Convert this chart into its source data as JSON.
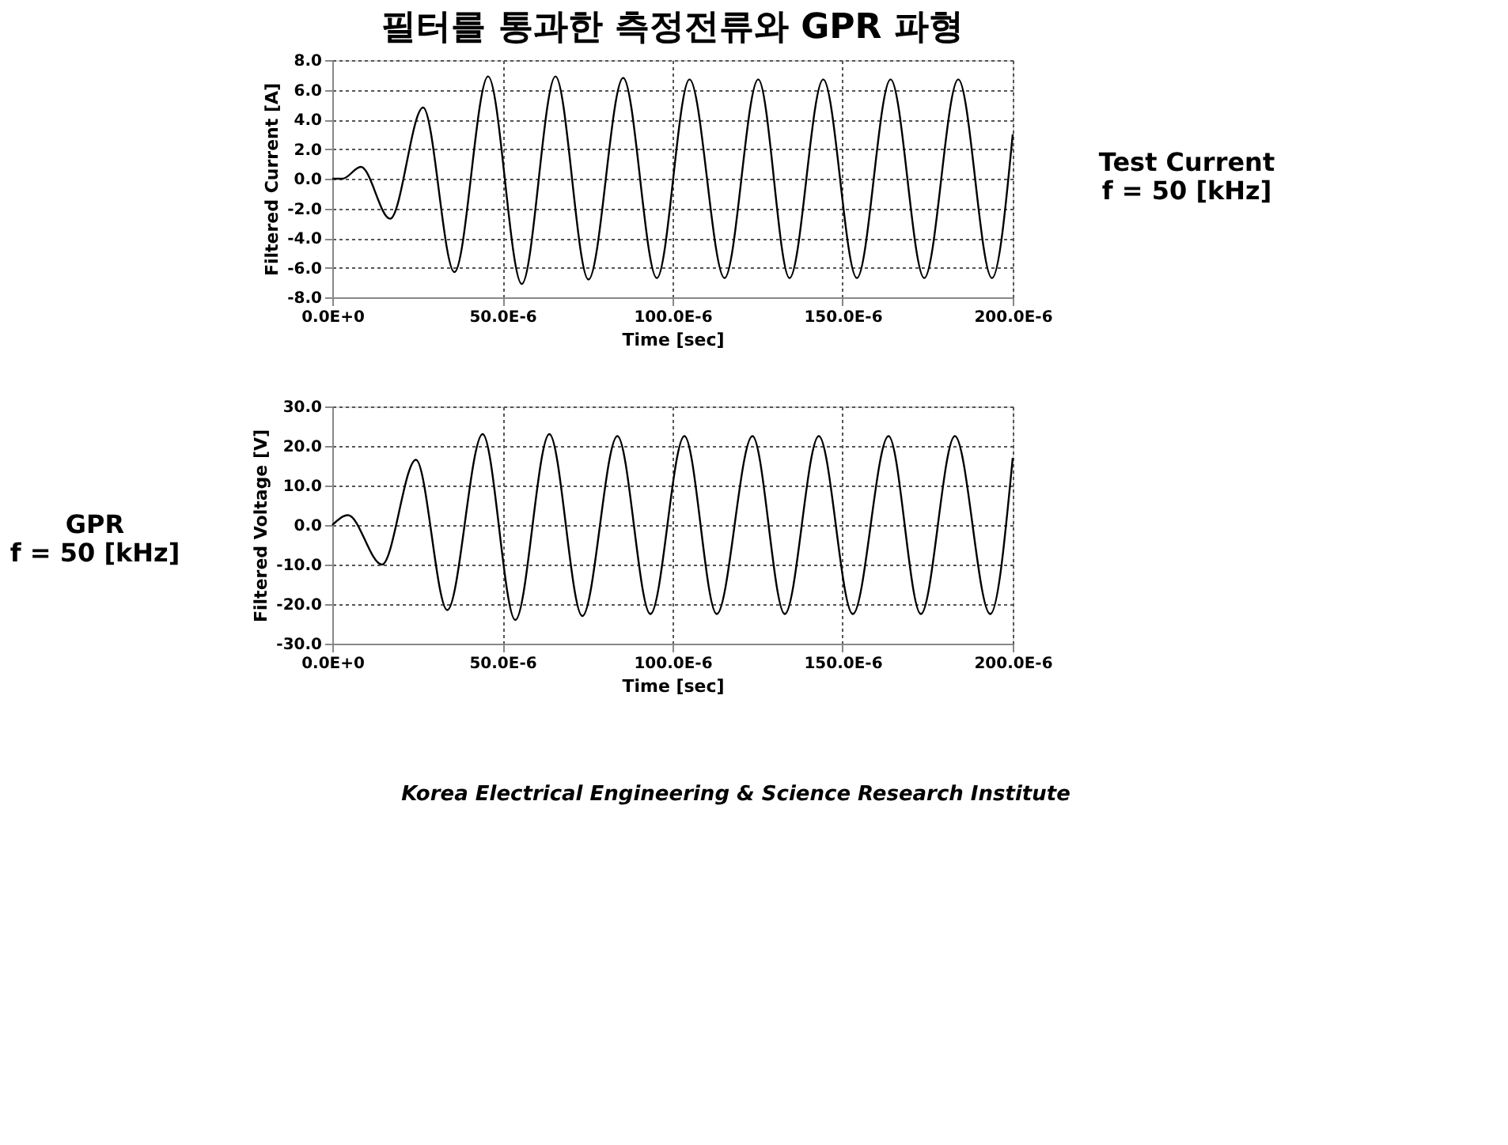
{
  "chart_data": [
    {
      "type": "line",
      "title": "필터를 통과한 측정전류와 GPR 파형",
      "xlabel": "Time [sec]",
      "ylabel": "Filtered Current [A]",
      "annotations": [
        "Test Current\nf = 50 [kHz]"
      ],
      "grid": true,
      "xlim": [
        0,
        0.0002
      ],
      "xticks": [
        {
          "value": 0,
          "label": "0.0E+0"
        },
        {
          "value": 5e-05,
          "label": "50.0E-6"
        },
        {
          "value": 0.0001,
          "label": "100.0E-6"
        },
        {
          "value": 0.00015,
          "label": "150.0E-6"
        },
        {
          "value": 0.0002,
          "label": "200.0E-6"
        }
      ],
      "ylim": [
        -8,
        8
      ],
      "yticks": [
        {
          "value": -8,
          "label": "-8.0"
        },
        {
          "value": -6,
          "label": "-6.0"
        },
        {
          "value": -4,
          "label": "-4.0"
        },
        {
          "value": -2,
          "label": "-2.0"
        },
        {
          "value": 0,
          "label": "0.0"
        },
        {
          "value": 2,
          "label": "2.0"
        },
        {
          "value": 4,
          "label": "4.0"
        },
        {
          "value": 6,
          "label": "6.0"
        },
        {
          "value": 8,
          "label": "8.0"
        }
      ],
      "series": [
        {
          "color": "#000000",
          "x": [
            0,
            3e-06,
            8.4e-06,
            1.7e-05,
            2.67e-05,
            3.59e-05,
            4.58e-05,
            5.57e-05,
            6.56e-05,
            7.53e-05,
            8.55e-05,
            9.54e-05,
            0.000105,
            0.0001153,
            0.0001252,
            0.0001344,
            0.0001443,
            0.0001542,
            0.0001641,
            0.000174,
            0.000184,
            0.0001939,
            0.0002
          ],
          "values": [
            0,
            0,
            0.8,
            -2.7,
            4.8,
            -6.3,
            6.9,
            -7.1,
            6.9,
            -6.8,
            6.8,
            -6.7,
            6.7,
            -6.7,
            6.7,
            -6.7,
            6.7,
            -6.7,
            6.7,
            -6.7,
            6.7,
            -6.7,
            3
          ]
        }
      ]
    },
    {
      "type": "line",
      "xlabel": "Time [sec]",
      "ylabel": "Filtered Voltage [V]",
      "annotations": [
        "GPR\nf = 50 [kHz]",
        "Korea Electrical Engineering & Science Research Institute"
      ],
      "grid": true,
      "xlim": [
        0,
        0.0002
      ],
      "xticks": [
        {
          "value": 0,
          "label": "0.0E+0"
        },
        {
          "value": 5e-05,
          "label": "50.0E-6"
        },
        {
          "value": 0.0001,
          "label": "100.0E-6"
        },
        {
          "value": 0.00015,
          "label": "150.0E-6"
        },
        {
          "value": 0.0002,
          "label": "200.0E-6"
        }
      ],
      "ylim": [
        -30,
        30
      ],
      "yticks": [
        {
          "value": -30,
          "label": "-30.0"
        },
        {
          "value": -20,
          "label": "-20.0"
        },
        {
          "value": -10,
          "label": "-10.0"
        },
        {
          "value": 0,
          "label": "0.0"
        },
        {
          "value": 10,
          "label": "10.0"
        },
        {
          "value": 20,
          "label": "20.0"
        },
        {
          "value": 30,
          "label": "30.0"
        }
      ],
      "series": [
        {
          "color": "#000000",
          "x": [
            0,
            4.6e-06,
            1.46e-05,
            2.46e-05,
            3.38e-05,
            4.42e-05,
            5.38e-05,
            6.38e-05,
            7.35e-05,
            8.38e-05,
            9.35e-05,
            0.0001035,
            0.000113,
            0.0001235,
            0.000133,
            0.000143,
            0.000153,
            0.0001635,
            0.000173,
            0.000183,
            0.0001934,
            0.0002
          ],
          "values": [
            0,
            2.5,
            -10,
            16.5,
            -21.5,
            23,
            -24,
            23,
            -23,
            22.5,
            -22.5,
            22.5,
            -22.5,
            22.5,
            -22.5,
            22.5,
            -22.5,
            22.5,
            -22.5,
            22.5,
            -22.5,
            17
          ]
        }
      ]
    }
  ]
}
